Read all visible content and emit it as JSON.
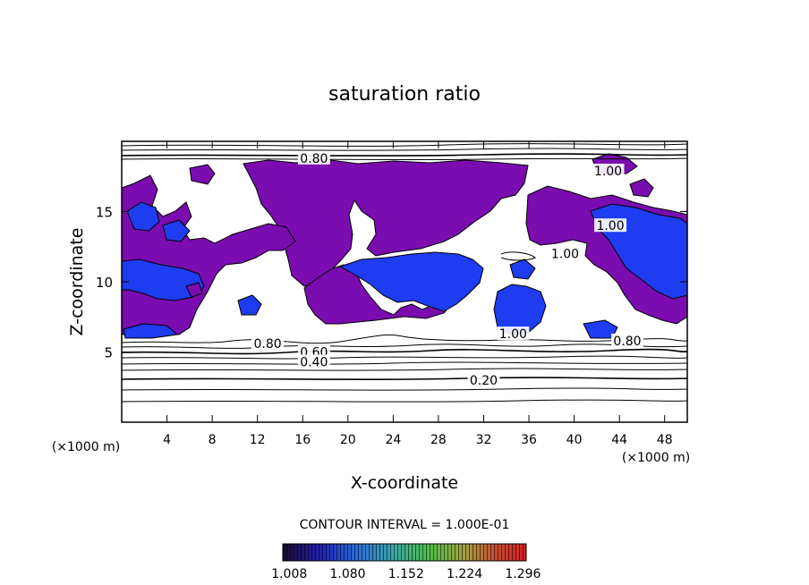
{
  "chart_data": {
    "type": "heatmap",
    "title": "saturation ratio",
    "xlabel": "X-coordinate",
    "ylabel": "Z-coordinate",
    "x_unit": "(×1000 m)",
    "z_unit": "(×1000 m)",
    "xlim": [
      0,
      50
    ],
    "ylim": [
      0,
      20
    ],
    "x_ticks": [
      4,
      8,
      12,
      16,
      20,
      24,
      28,
      32,
      36,
      40,
      44,
      48
    ],
    "y_ticks": [
      5,
      10,
      15
    ],
    "contour_interval_text": "CONTOUR INTERVAL = 1.000E-01",
    "contour_labels": [
      {
        "text": "0.80",
        "x": 17.0,
        "y": 18.8
      },
      {
        "text": "1.00",
        "x": 43.0,
        "y": 17.9
      },
      {
        "text": "1.00",
        "x": 43.2,
        "y": 14.0
      },
      {
        "text": "1.00",
        "x": 39.2,
        "y": 12.0
      },
      {
        "text": "1.00",
        "x": 34.6,
        "y": 6.3
      },
      {
        "text": "0.80",
        "x": 12.9,
        "y": 5.6
      },
      {
        "text": "0.80",
        "x": 44.7,
        "y": 5.8
      },
      {
        "text": "0.60",
        "x": 17.0,
        "y": 5.0
      },
      {
        "text": "0.40",
        "x": 17.0,
        "y": 4.3
      },
      {
        "text": "0.20",
        "x": 32.0,
        "y": 3.0
      }
    ],
    "colorbar": {
      "tick_labels": [
        "1.008",
        "1.080",
        "1.152",
        "1.224",
        "1.296"
      ],
      "range": [
        1.0,
        1.3
      ],
      "colors": [
        "#2a0a3c",
        "#1a1aa8",
        "#2a5ad8",
        "#3aa0a0",
        "#48b848",
        "#a0b040",
        "#c05030",
        "#d02828"
      ]
    },
    "fill_colors": {
      "purple": "#7a0cb0",
      "blue": "#1e3cf0"
    }
  }
}
